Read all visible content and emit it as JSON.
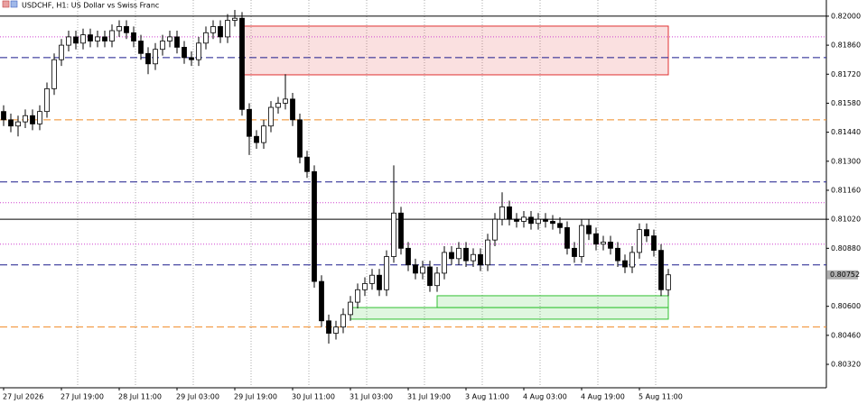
{
  "chart_data": {
    "type": "candlestick",
    "title": "USDCHF, H1:  US Dollar vs Swiss Franc",
    "categories": [
      "27 Jul 2026",
      null,
      null,
      null,
      null,
      null,
      null,
      null,
      "27 Jul 19:00",
      null,
      null,
      null,
      null,
      null,
      null,
      null,
      "28 Jul 11:00",
      null,
      null,
      null,
      null,
      null,
      null,
      null,
      "29 Jul 03:00",
      null,
      null,
      null,
      null,
      null,
      null,
      null,
      "29 Jul 19:00",
      null,
      null,
      null,
      null,
      null,
      null,
      null,
      "30 Jul 11:00",
      null,
      null,
      null,
      null,
      null,
      null,
      null,
      "31 Jul 03:00",
      null,
      null,
      null,
      null,
      null,
      null,
      null,
      "31 Jul 19:00",
      null,
      null,
      null,
      null,
      null,
      null,
      null,
      "3 Aug 11:00",
      null,
      null,
      null,
      null,
      null,
      null,
      null,
      "4 Aug 03:00",
      null,
      null,
      null,
      null,
      null,
      null,
      null,
      "4 Aug 19:00",
      null,
      null,
      null,
      null,
      null,
      null,
      null,
      "5 Aug 11:00",
      null,
      null,
      null,
      null
    ],
    "open": [
      0.8154,
      0.815,
      0.8147,
      0.8149,
      0.8152,
      0.8148,
      0.8154,
      0.8165,
      0.8179,
      0.8186,
      0.819,
      0.8187,
      0.8191,
      0.8188,
      0.819,
      0.8188,
      0.8193,
      0.8195,
      0.8192,
      0.8188,
      0.8182,
      0.8177,
      0.8184,
      0.8188,
      0.819,
      0.8185,
      0.818,
      0.8179,
      0.8187,
      0.8192,
      0.8195,
      0.819,
      0.8198,
      0.8199,
      0.8155,
      0.8142,
      0.8139,
      0.8147,
      0.8156,
      0.8158,
      0.816,
      0.815,
      0.8132,
      0.8125,
      0.8072,
      0.8053,
      0.8047,
      0.805,
      0.8056,
      0.8062,
      0.8068,
      0.8071,
      0.8075,
      0.8068,
      0.8084,
      0.8105,
      0.8088,
      0.808,
      0.8076,
      0.8079,
      0.807,
      0.8076,
      0.8086,
      0.8083,
      0.8088,
      0.8082,
      0.8085,
      0.808,
      0.8092,
      0.8102,
      0.8108,
      0.8102,
      0.8101,
      0.8103,
      0.81,
      0.8102,
      0.8101,
      0.81,
      0.8098,
      0.8088,
      0.8084,
      0.8099,
      0.8095,
      0.809,
      0.8091,
      0.8088,
      0.8082,
      0.8079,
      0.8086,
      0.8097,
      0.8094,
      0.8087,
      0.8068
    ],
    "high": [
      0.8157,
      0.8153,
      0.8152,
      0.8155,
      0.8155,
      0.8157,
      0.8168,
      0.8182,
      0.8189,
      0.8193,
      0.8193,
      0.8194,
      0.8194,
      0.8193,
      0.8193,
      0.8196,
      0.8198,
      0.8198,
      0.8195,
      0.8191,
      0.8185,
      0.8187,
      0.8191,
      0.8193,
      0.8193,
      0.8188,
      0.8183,
      0.819,
      0.8195,
      0.8198,
      0.8198,
      0.8201,
      0.8203,
      0.8202,
      0.8158,
      0.8145,
      0.815,
      0.8159,
      0.8161,
      0.8172,
      0.8163,
      0.8153,
      0.8135,
      0.8128,
      0.8075,
      0.8056,
      0.8053,
      0.8059,
      0.8065,
      0.8071,
      0.8074,
      0.8078,
      0.8078,
      0.8087,
      0.8128,
      0.8108,
      0.8091,
      0.8083,
      0.8082,
      0.8082,
      0.8079,
      0.8089,
      0.8089,
      0.8091,
      0.8091,
      0.8088,
      0.8088,
      0.8095,
      0.8105,
      0.8115,
      0.8111,
      0.8105,
      0.8106,
      0.8106,
      0.8105,
      0.8105,
      0.8104,
      0.8103,
      0.8101,
      0.8091,
      0.8102,
      0.8102,
      0.8098,
      0.8094,
      0.8094,
      0.8091,
      0.8085,
      0.8089,
      0.81,
      0.81,
      0.8097,
      0.809,
      0.8078
    ],
    "low": [
      0.8147,
      0.8144,
      0.8142,
      0.8146,
      0.8145,
      0.8145,
      0.8151,
      0.8162,
      0.8176,
      0.8183,
      0.8184,
      0.8184,
      0.8185,
      0.8185,
      0.8185,
      0.8185,
      0.819,
      0.8189,
      0.8185,
      0.8179,
      0.8172,
      0.8174,
      0.8181,
      0.8185,
      0.8182,
      0.8177,
      0.8176,
      0.8176,
      0.8184,
      0.8189,
      0.8187,
      0.8187,
      0.8195,
      0.8152,
      0.8133,
      0.8136,
      0.8136,
      0.8144,
      0.8153,
      0.8155,
      0.8147,
      0.8129,
      0.8122,
      0.8069,
      0.805,
      0.8042,
      0.8044,
      0.8047,
      0.8053,
      0.8059,
      0.8065,
      0.8068,
      0.8065,
      0.8065,
      0.8081,
      0.8085,
      0.8077,
      0.8073,
      0.8073,
      0.8067,
      0.8067,
      0.8073,
      0.808,
      0.808,
      0.8079,
      0.8079,
      0.8077,
      0.8077,
      0.8089,
      0.8099,
      0.8099,
      0.8098,
      0.8098,
      0.8097,
      0.8097,
      0.8098,
      0.8097,
      0.8095,
      0.8085,
      0.8081,
      0.8081,
      0.8092,
      0.8087,
      0.8087,
      0.8085,
      0.8079,
      0.8076,
      0.8076,
      0.8083,
      0.8091,
      0.8084,
      0.8065,
      0.8065
    ],
    "close": [
      0.815,
      0.8147,
      0.8149,
      0.8152,
      0.8148,
      0.8154,
      0.8165,
      0.8179,
      0.8186,
      0.819,
      0.8187,
      0.8191,
      0.8188,
      0.819,
      0.8188,
      0.8193,
      0.8195,
      0.8192,
      0.8188,
      0.8182,
      0.8177,
      0.8184,
      0.8188,
      0.819,
      0.8185,
      0.818,
      0.8179,
      0.8187,
      0.8192,
      0.8195,
      0.819,
      0.8198,
      0.8199,
      0.8155,
      0.8142,
      0.8139,
      0.8147,
      0.8156,
      0.8158,
      0.816,
      0.815,
      0.8132,
      0.8125,
      0.8072,
      0.8053,
      0.8047,
      0.805,
      0.8056,
      0.8062,
      0.8068,
      0.8071,
      0.8075,
      0.8068,
      0.8084,
      0.8105,
      0.8088,
      0.808,
      0.8076,
      0.8079,
      0.807,
      0.8076,
      0.8086,
      0.8083,
      0.8088,
      0.8082,
      0.8085,
      0.808,
      0.8092,
      0.8102,
      0.8108,
      0.8102,
      0.8101,
      0.8103,
      0.81,
      0.8102,
      0.8101,
      0.81,
      0.8098,
      0.8088,
      0.8084,
      0.8099,
      0.8095,
      0.809,
      0.8091,
      0.8088,
      0.8082,
      0.8079,
      0.8086,
      0.8097,
      0.8094,
      0.8087,
      0.8068,
      0.80752
    ],
    "ylim": [
      0.80207,
      0.82078
    ],
    "yticks": [
      {
        "value": 0.82,
        "label": "0.82000"
      },
      {
        "value": 0.8186,
        "label": "0.81860"
      },
      {
        "value": 0.8172,
        "label": "0.81720"
      },
      {
        "value": 0.8158,
        "label": "0.81580"
      },
      {
        "value": 0.8144,
        "label": "0.81440"
      },
      {
        "value": 0.813,
        "label": "0.81300"
      },
      {
        "value": 0.8116,
        "label": "0.81160"
      },
      {
        "value": 0.8102,
        "label": "0.81020"
      },
      {
        "value": 0.8088,
        "label": "0.80880"
      },
      {
        "value": 0.806,
        "label": "0.80600"
      },
      {
        "value": 0.8046,
        "label": "0.80460"
      },
      {
        "value": 0.8032,
        "label": "0.80320"
      }
    ],
    "levels": [
      {
        "value": 0.82,
        "color": "#000000",
        "style": "solid"
      },
      {
        "value": 0.8102,
        "color": "#000000",
        "style": "solid"
      },
      {
        "value": 0.818,
        "color": "#1a1a8c",
        "style": "dashed"
      },
      {
        "value": 0.812,
        "color": "#1a1a8c",
        "style": "dashed"
      },
      {
        "value": 0.808,
        "color": "#1a1a8c",
        "style": "dashed"
      },
      {
        "value": 0.815,
        "color": "#f08a24",
        "style": "dashed"
      },
      {
        "value": 0.805,
        "color": "#f08a24",
        "style": "dashed"
      },
      {
        "value": 0.819,
        "color": "#d040d0",
        "style": "dotted"
      },
      {
        "value": 0.811,
        "color": "#d040d0",
        "style": "dotted"
      },
      {
        "value": 0.809,
        "color": "#d040d0",
        "style": "dotted"
      }
    ],
    "zones": [
      {
        "top": 0.81952,
        "bottom": 0.81717,
        "from": 33,
        "to": 92,
        "color": "#e03030"
      },
      {
        "top": 0.80651,
        "bottom": 0.80594,
        "from": 60,
        "to": 92,
        "color": "#30c030"
      },
      {
        "top": 0.80594,
        "bottom": 0.80538,
        "from": 48,
        "to": 92,
        "color": "#30c030"
      }
    ],
    "grid": true
  }
}
